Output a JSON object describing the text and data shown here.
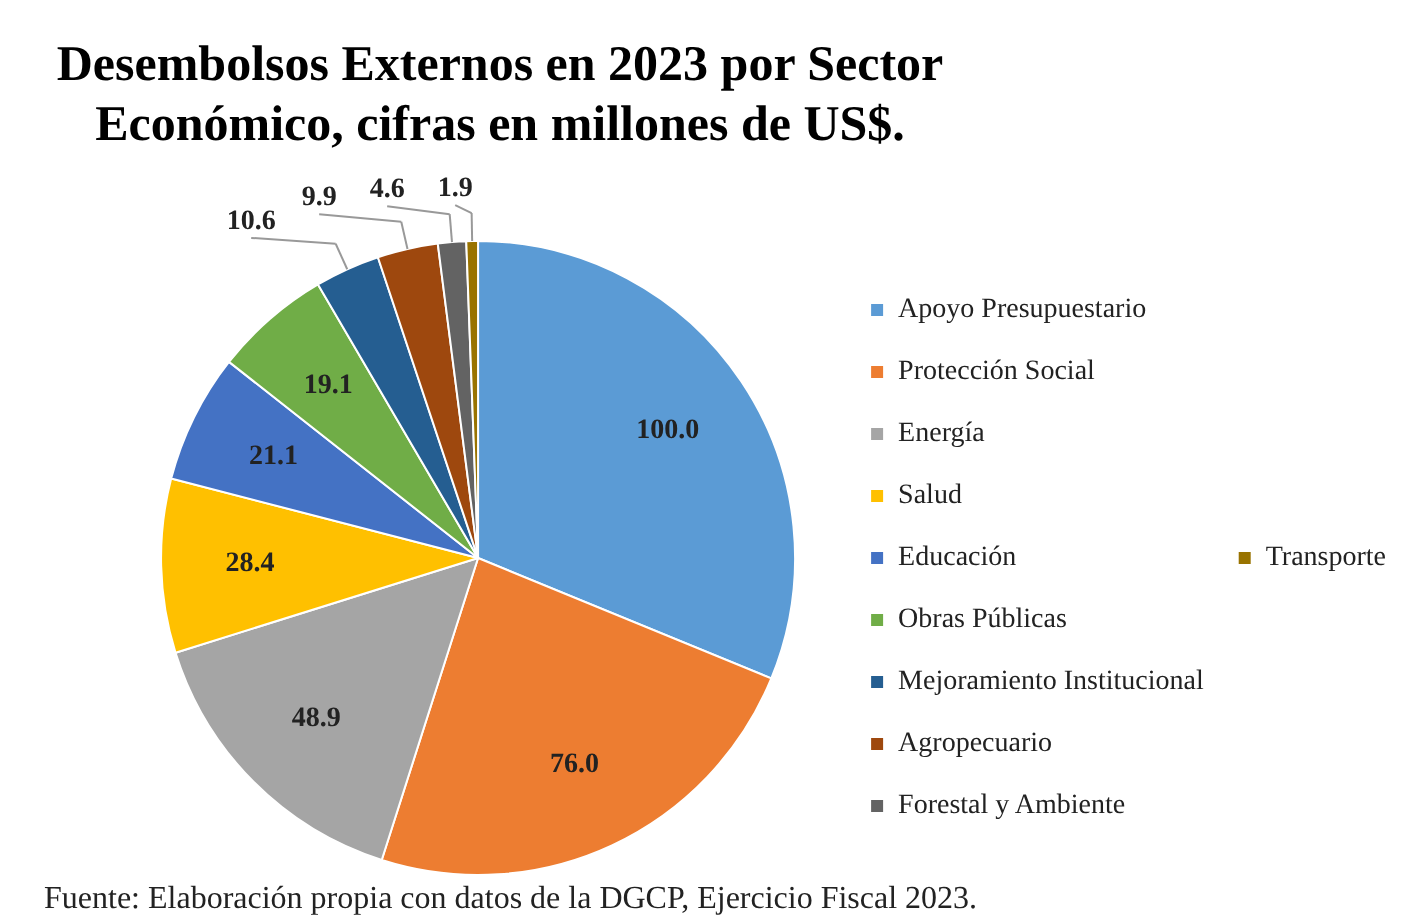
{
  "chart_data": {
    "type": "pie",
    "title": "Desembolsos Externos en 2023 por Sector Económico, cifras en millones de US$.",
    "categories": [
      "Apoyo Presupuestario",
      "Protección Social",
      "Energía",
      "Salud",
      "Educación",
      "Obras Públicas",
      "Mejoramiento Institucional",
      "Agropecuario",
      "Forestal y Ambiente",
      "Transporte"
    ],
    "values": [
      100.0,
      76.0,
      48.9,
      28.4,
      21.1,
      19.1,
      10.6,
      9.9,
      4.6,
      1.9
    ],
    "value_labels": [
      "100.0",
      "76.0",
      "48.9",
      "28.4",
      "21.1",
      "19.1",
      "10.6",
      "9.9",
      "4.6",
      "1.9"
    ],
    "colors": [
      "#5b9bd5",
      "#ed7d31",
      "#a5a5a5",
      "#ffc000",
      "#4472c4",
      "#70ad47",
      "#255e91",
      "#9e480e",
      "#636363",
      "#997300"
    ],
    "legend": "right",
    "annotations": [
      "Fuente: Elaboración propia con datos de la DGCP, Ejercicio Fiscal 2023."
    ]
  }
}
